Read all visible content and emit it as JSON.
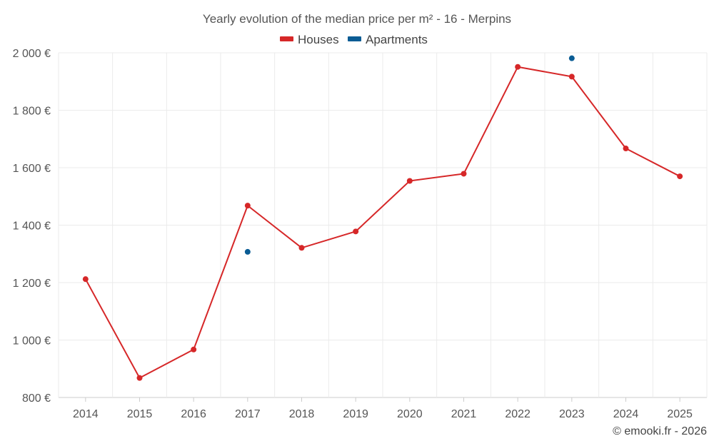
{
  "chart_data": {
    "type": "line",
    "title": "Yearly evolution of the median price per m² - 16 - Merpins",
    "categories": [
      "2014",
      "2015",
      "2016",
      "2017",
      "2018",
      "2019",
      "2020",
      "2021",
      "2022",
      "2023",
      "2024",
      "2025"
    ],
    "series": [
      {
        "name": "Houses",
        "color": "#d62728",
        "values": [
          1212,
          868,
          967,
          1468,
          1321,
          1378,
          1554,
          1579,
          1951,
          1917,
          1667,
          1570
        ]
      },
      {
        "name": "Apartments",
        "color": "#0a5c94",
        "values": [
          null,
          null,
          null,
          1307,
          null,
          null,
          null,
          null,
          null,
          1981,
          null,
          null
        ]
      }
    ],
    "ylim": [
      800,
      2000
    ],
    "yticks": [
      800,
      1000,
      1200,
      1400,
      1600,
      1800,
      2000
    ],
    "ytick_labels": [
      "800 €",
      "1 000 €",
      "1 200 €",
      "1 400 €",
      "1 600 €",
      "1 800 €",
      "2 000 €"
    ],
    "xlabel": "",
    "ylabel": "",
    "grid": true,
    "legend_position": "top-center"
  },
  "credit": "© emooki.fr - 2026"
}
